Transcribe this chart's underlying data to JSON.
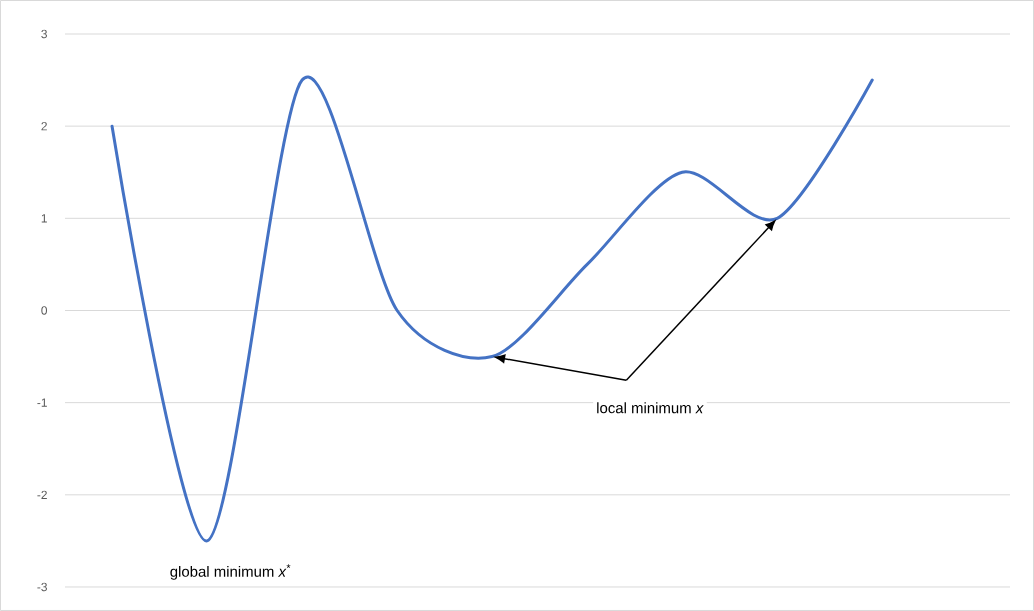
{
  "chart_data": {
    "type": "line",
    "categories": [
      null,
      null,
      null,
      null,
      null,
      null,
      null,
      null,
      null
    ],
    "series": [
      {
        "color": "#4472c4",
        "values": [
          2,
          -2.5,
          2.5,
          0,
          -0.5,
          0.5,
          1.5,
          1,
          2.5
        ]
      }
    ],
    "ylim": [
      -3,
      3
    ],
    "yticks": [
      -3,
      -2,
      -1,
      0,
      1,
      2,
      3
    ],
    "grid": "y",
    "marker": "none",
    "line_style": "solid",
    "annotations": [
      "global minimum  *x*$^{*}$",
      "local minimum *x*"
    ]
  }
}
